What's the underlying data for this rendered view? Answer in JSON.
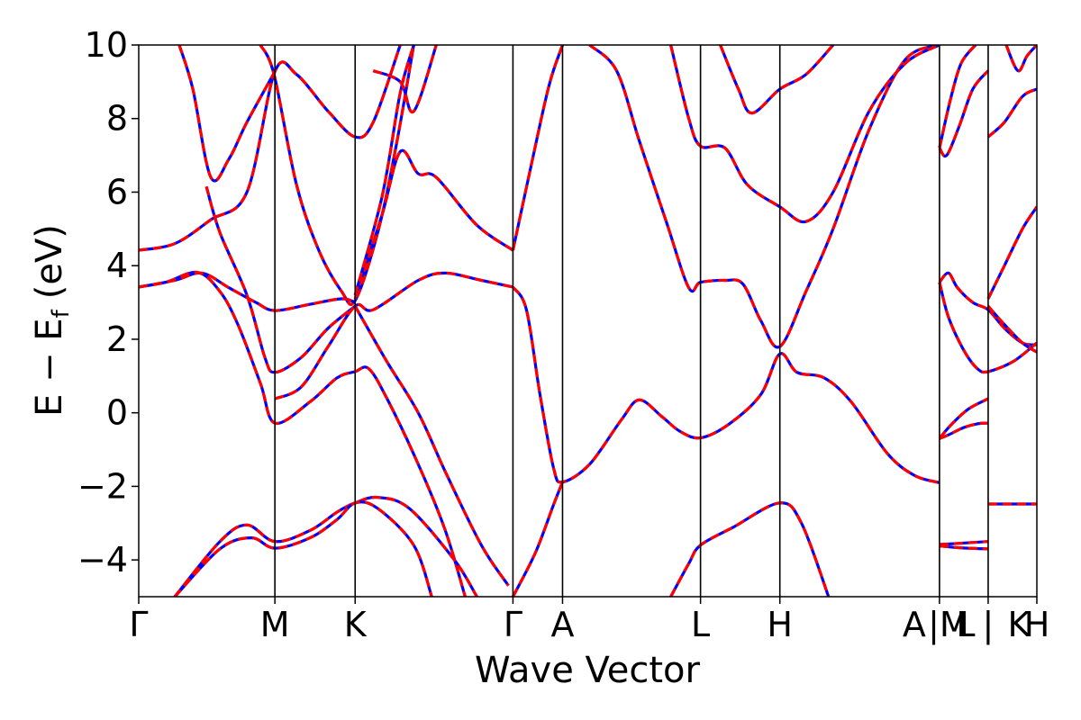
{
  "chart_data": {
    "type": "line",
    "title": "",
    "xlabel": "Wave Vector",
    "ylabel_main": "E − E",
    "ylabel_sub": "f",
    "ylabel_unit": "(eV)",
    "ylim": [
      -5,
      10
    ],
    "xlim": [
      0,
      9.96
    ],
    "yticks": [
      -4,
      -2,
      0,
      2,
      4,
      6,
      8,
      10
    ],
    "ytick_labels": [
      "−4",
      "−2",
      "0",
      "2",
      "4",
      "6",
      "8",
      "10"
    ],
    "kpoint_positions": [
      0,
      1.51,
      2.4,
      4.15,
      4.7,
      6.23,
      7.11,
      8.88,
      9.42,
      9.96
    ],
    "xtick_labels": [
      {
        "x": 0.0,
        "label": "Γ"
      },
      {
        "x": 1.51,
        "label": "M"
      },
      {
        "x": 2.4,
        "label": "K"
      },
      {
        "x": 4.15,
        "label": "Γ"
      },
      {
        "x": 4.7,
        "label": "A"
      },
      {
        "x": 6.23,
        "label": "L"
      },
      {
        "x": 7.11,
        "label": "H"
      },
      {
        "x": 8.6,
        "label": "A"
      },
      {
        "x": 8.98,
        "label": "|M"
      },
      {
        "x": 9.17,
        "label": "L"
      },
      {
        "x": 9.42,
        "label": "|"
      },
      {
        "x": 9.76,
        "label": "K"
      },
      {
        "x": 9.96,
        "label": "H"
      }
    ],
    "line_colors": {
      "solid": "#0000ff",
      "dashed": "#ff0000"
    },
    "series": [
      {
        "values": [
          [
            0,
            4.42
          ],
          [
            0.4,
            4.6
          ],
          [
            0.8,
            5.25
          ],
          [
            1.2,
            6.0
          ],
          [
            1.51,
            9.28
          ],
          [
            1.75,
            9.2
          ],
          [
            2.1,
            8.2
          ],
          [
            2.4,
            7.5
          ],
          [
            2.6,
            7.9
          ],
          [
            2.9,
            10.0
          ]
        ]
      },
      {
        "values": [
          [
            0,
            3.42
          ],
          [
            0.3,
            3.55
          ],
          [
            0.65,
            3.82
          ],
          [
            0.9,
            3.3
          ],
          [
            1.1,
            2.4
          ],
          [
            1.35,
            0.8
          ],
          [
            1.51,
            -0.28
          ],
          [
            1.9,
            0.3
          ],
          [
            2.2,
            0.95
          ],
          [
            2.4,
            1.12
          ],
          [
            2.55,
            1.2
          ],
          [
            2.75,
            0.4
          ],
          [
            3.1,
            -1.4
          ],
          [
            3.4,
            -3.2
          ],
          [
            3.62,
            -5.0
          ]
        ]
      },
      {
        "values": [
          [
            0.45,
            10.0
          ],
          [
            0.6,
            8.8
          ],
          [
            0.8,
            6.4
          ],
          [
            1.0,
            6.9
          ],
          [
            1.2,
            7.9
          ],
          [
            1.51,
            9.28
          ]
        ]
      },
      {
        "values": [
          [
            0.75,
            6.15
          ],
          [
            0.9,
            4.9
          ],
          [
            1.2,
            3.2
          ],
          [
            1.4,
            1.5
          ],
          [
            1.51,
            1.1
          ],
          [
            1.8,
            1.5
          ],
          [
            2.1,
            2.3
          ],
          [
            2.4,
            2.9
          ]
        ]
      },
      {
        "values": [
          [
            1.35,
            10.0
          ],
          [
            1.5,
            9.2
          ],
          [
            1.75,
            6.2
          ],
          [
            2.0,
            4.4
          ],
          [
            2.25,
            3.3
          ],
          [
            2.4,
            3.05
          ],
          [
            2.65,
            4.9
          ],
          [
            2.85,
            7.2
          ],
          [
            3.05,
            10.0
          ]
        ]
      },
      {
        "values": [
          [
            0,
            3.42
          ],
          [
            0.4,
            3.6
          ],
          [
            0.7,
            3.8
          ],
          [
            1.0,
            3.4
          ],
          [
            1.3,
            3.0
          ],
          [
            1.51,
            2.78
          ],
          [
            1.9,
            2.95
          ],
          [
            2.25,
            3.1
          ],
          [
            2.4,
            3.0
          ]
        ]
      },
      {
        "values": [
          [
            1.51,
            0.38
          ],
          [
            1.8,
            0.7
          ],
          [
            2.1,
            1.8
          ],
          [
            2.4,
            2.9
          ],
          [
            2.6,
            2.8
          ],
          [
            3.1,
            3.6
          ],
          [
            3.4,
            3.8
          ],
          [
            3.8,
            3.6
          ],
          [
            4.15,
            3.42
          ]
        ]
      },
      {
        "values": [
          [
            2.4,
            2.9
          ],
          [
            2.75,
            1.4
          ],
          [
            3.1,
            0.0
          ],
          [
            3.4,
            -1.6
          ],
          [
            3.8,
            -3.6
          ],
          [
            4.1,
            -4.7
          ]
        ]
      },
      {
        "values": [
          [
            2.4,
            3.1
          ],
          [
            2.7,
            5.4
          ],
          [
            2.9,
            7.1
          ],
          [
            3.1,
            6.5
          ],
          [
            3.3,
            6.4
          ],
          [
            3.75,
            5.1
          ],
          [
            4.15,
            4.42
          ]
        ]
      },
      {
        "values": [
          [
            2.4,
            3.2
          ],
          [
            2.7,
            5.9
          ],
          [
            2.9,
            8.7
          ],
          [
            3.05,
            10.0
          ]
        ]
      },
      {
        "values": [
          [
            2.6,
            9.3
          ],
          [
            2.9,
            9.0
          ],
          [
            3.05,
            8.2
          ],
          [
            3.3,
            10.0
          ]
        ]
      },
      {
        "values": [
          [
            0.4,
            -5.0
          ],
          [
            0.9,
            -3.5
          ],
          [
            1.2,
            -3.05
          ],
          [
            1.51,
            -3.5
          ],
          [
            1.9,
            -3.2
          ],
          [
            2.2,
            -2.7
          ],
          [
            2.4,
            -2.45
          ],
          [
            2.65,
            -2.3
          ],
          [
            3.0,
            -2.6
          ],
          [
            3.5,
            -4.0
          ],
          [
            3.75,
            -5.0
          ]
        ]
      },
      {
        "values": [
          [
            0.4,
            -5.0
          ],
          [
            0.9,
            -3.7
          ],
          [
            1.25,
            -3.4
          ],
          [
            1.51,
            -3.68
          ],
          [
            1.9,
            -3.4
          ],
          [
            2.2,
            -2.9
          ],
          [
            2.4,
            -2.45
          ],
          [
            2.65,
            -2.6
          ],
          [
            3.05,
            -3.6
          ],
          [
            3.25,
            -5.0
          ]
        ]
      },
      {
        "values": [
          [
            4.15,
            3.42
          ],
          [
            4.3,
            2.8
          ],
          [
            4.45,
            0.5
          ],
          [
            4.6,
            -1.5
          ],
          [
            4.7,
            -1.88
          ],
          [
            5.0,
            -1.4
          ],
          [
            5.35,
            -0.2
          ],
          [
            5.55,
            0.35
          ],
          [
            5.8,
            -0.1
          ],
          [
            6.0,
            -0.5
          ],
          [
            6.23,
            -0.68
          ],
          [
            6.55,
            -0.3
          ],
          [
            6.9,
            0.5
          ],
          [
            7.11,
            1.6
          ],
          [
            7.3,
            1.1
          ],
          [
            7.6,
            0.95
          ],
          [
            7.9,
            0.3
          ],
          [
            8.3,
            -1.1
          ],
          [
            8.6,
            -1.7
          ],
          [
            8.88,
            -1.9
          ]
        ]
      },
      {
        "values": [
          [
            4.15,
            -5.0
          ],
          [
            4.4,
            -3.8
          ],
          [
            4.6,
            -2.5
          ],
          [
            4.7,
            -1.88
          ]
        ]
      },
      {
        "values": [
          [
            4.15,
            4.42
          ],
          [
            4.35,
            6.7
          ],
          [
            4.55,
            8.9
          ],
          [
            4.7,
            10.0
          ]
        ]
      },
      {
        "values": [
          [
            5.0,
            10.0
          ],
          [
            5.3,
            9.3
          ],
          [
            5.55,
            7.4
          ],
          [
            5.85,
            5.2
          ],
          [
            6.1,
            3.4
          ],
          [
            6.23,
            3.55
          ],
          [
            6.5,
            3.6
          ],
          [
            6.7,
            3.5
          ],
          [
            6.9,
            2.5
          ],
          [
            7.11,
            1.8
          ],
          [
            7.4,
            3.3
          ],
          [
            7.7,
            5.0
          ],
          [
            8.1,
            7.7
          ],
          [
            8.5,
            9.6
          ],
          [
            8.88,
            10.0
          ]
        ]
      },
      {
        "values": [
          [
            5.9,
            10.0
          ],
          [
            6.1,
            8.0
          ],
          [
            6.23,
            7.25
          ],
          [
            6.5,
            7.2
          ],
          [
            6.75,
            6.2
          ],
          [
            7.11,
            5.6
          ],
          [
            7.4,
            5.2
          ],
          [
            7.7,
            6.0
          ],
          [
            8.1,
            8.2
          ],
          [
            8.5,
            9.5
          ],
          [
            8.88,
            10.0
          ]
        ]
      },
      {
        "values": [
          [
            6.45,
            10.0
          ],
          [
            6.65,
            8.8
          ],
          [
            6.8,
            8.15
          ],
          [
            7.11,
            8.8
          ],
          [
            7.4,
            9.2
          ],
          [
            7.7,
            10.0
          ]
        ]
      },
      {
        "values": [
          [
            5.9,
            -5.0
          ],
          [
            6.1,
            -4.1
          ],
          [
            6.23,
            -3.6
          ],
          [
            6.6,
            -3.1
          ],
          [
            7.11,
            -2.45
          ],
          [
            7.35,
            -3.0
          ],
          [
            7.65,
            -5.0
          ]
        ]
      },
      {
        "values": [
          [
            8.88,
            7.2
          ],
          [
            8.96,
            7.0
          ],
          [
            9.1,
            7.8
          ],
          [
            9.25,
            8.8
          ],
          [
            9.42,
            9.3
          ]
        ]
      },
      {
        "values": [
          [
            8.88,
            7.2
          ],
          [
            9.0,
            8.5
          ],
          [
            9.12,
            9.5
          ],
          [
            9.28,
            10.0
          ]
        ]
      },
      {
        "values": [
          [
            8.88,
            3.55
          ],
          [
            8.98,
            3.8
          ],
          [
            9.08,
            3.4
          ],
          [
            9.25,
            3.0
          ],
          [
            9.42,
            2.8
          ],
          [
            9.6,
            2.3
          ],
          [
            9.8,
            1.9
          ],
          [
            9.96,
            1.85
          ]
        ]
      },
      {
        "values": [
          [
            8.88,
            3.55
          ],
          [
            8.98,
            2.6
          ],
          [
            9.15,
            1.7
          ],
          [
            9.3,
            1.2
          ],
          [
            9.42,
            1.12
          ],
          [
            9.7,
            1.4
          ],
          [
            9.96,
            1.9
          ]
        ]
      },
      {
        "values": [
          [
            8.88,
            -0.7
          ],
          [
            8.98,
            -0.6
          ],
          [
            9.15,
            -0.4
          ],
          [
            9.3,
            -0.3
          ],
          [
            9.42,
            -0.28
          ]
        ]
      },
      {
        "values": [
          [
            8.88,
            -0.7
          ],
          [
            9.0,
            -0.35
          ],
          [
            9.2,
            0.1
          ],
          [
            9.42,
            0.38
          ]
        ]
      },
      {
        "values": [
          [
            8.88,
            -3.58
          ],
          [
            9.1,
            -3.55
          ],
          [
            9.42,
            -3.5
          ]
        ]
      },
      {
        "values": [
          [
            8.88,
            -3.62
          ],
          [
            9.1,
            -3.67
          ],
          [
            9.42,
            -3.7
          ]
        ]
      },
      {
        "values": [
          [
            9.42,
            -2.48
          ],
          [
            9.96,
            -2.48
          ]
        ]
      },
      {
        "values": [
          [
            9.42,
            3.1
          ],
          [
            9.6,
            4.0
          ],
          [
            9.8,
            5.0
          ],
          [
            9.96,
            5.6
          ]
        ]
      },
      {
        "values": [
          [
            9.42,
            2.9
          ],
          [
            9.6,
            2.4
          ],
          [
            9.8,
            1.9
          ],
          [
            9.96,
            1.65
          ]
        ]
      },
      {
        "values": [
          [
            9.42,
            7.5
          ],
          [
            9.6,
            7.9
          ],
          [
            9.8,
            8.6
          ],
          [
            9.96,
            8.8
          ]
        ]
      },
      {
        "values": [
          [
            9.62,
            10.0
          ],
          [
            9.75,
            9.3
          ],
          [
            9.85,
            9.7
          ],
          [
            9.96,
            10.0
          ]
        ]
      }
    ]
  }
}
